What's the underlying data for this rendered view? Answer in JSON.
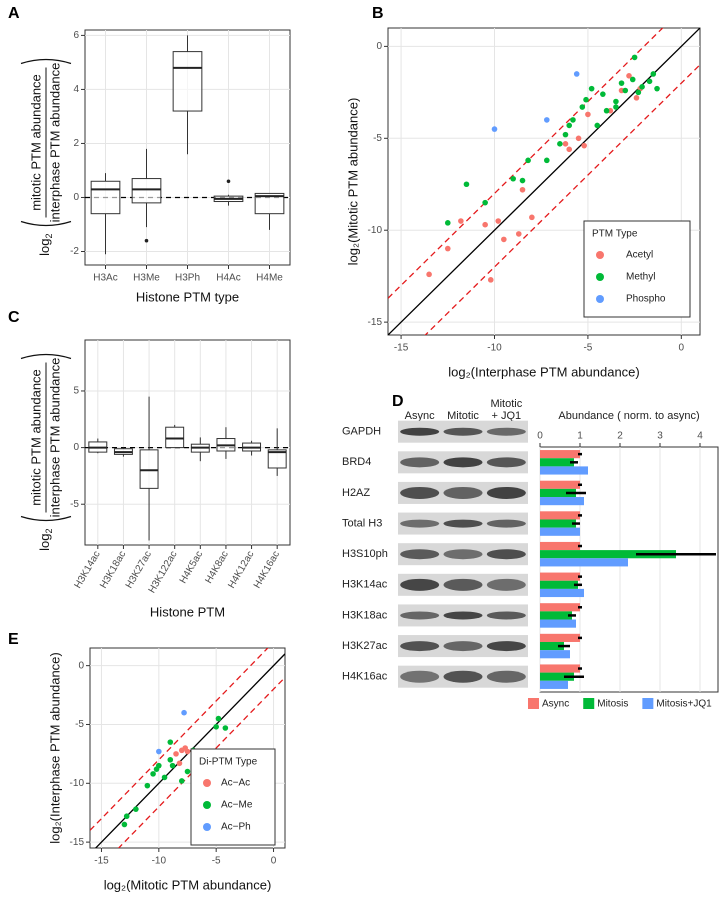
{
  "chart_data": [
    {
      "panel_label": "A",
      "type": "box",
      "ylabel": {
        "prefix": "log",
        "sub": "2",
        "numerator": "mitotic PTM abundance",
        "denominator": "interphase PTM abundance"
      },
      "xlabel": "Histone PTM type",
      "categories": [
        "H3Ac",
        "H3Me",
        "H3Ph",
        "H4Ac",
        "H4Me"
      ],
      "boxes": [
        {
          "low": -2.1,
          "q1": -0.6,
          "median": 0.3,
          "q3": 0.6,
          "high": 0.9,
          "outliers": []
        },
        {
          "low": -1.1,
          "q1": -0.2,
          "median": 0.3,
          "q3": 0.7,
          "high": 1.8,
          "outliers": [
            -1.6
          ]
        },
        {
          "low": 1.6,
          "q1": 3.2,
          "median": 4.8,
          "q3": 5.4,
          "high": 6.0,
          "outliers": []
        },
        {
          "low": -0.3,
          "q1": -0.15,
          "median": -0.05,
          "q3": 0.05,
          "high": 0.1,
          "outliers": [
            0.6
          ]
        },
        {
          "low": -1.2,
          "q1": -0.6,
          "median": 0.05,
          "q3": 0.15,
          "high": 0.15,
          "outliers": []
        }
      ],
      "ylim": [
        -2.5,
        6.2
      ],
      "yticks": [
        -2,
        0,
        2,
        4,
        6
      ],
      "hline": 0,
      "grid": true
    },
    {
      "panel_label": "B",
      "type": "scatter",
      "xlabel": "log₂(Interphase PTM abundance)",
      "ylabel": "log₂(Mitotic PTM abundance)",
      "xlim": [
        -15.7,
        1
      ],
      "ylim": [
        -15.7,
        1
      ],
      "xticks": [
        -15,
        -10,
        -5,
        0
      ],
      "yticks": [
        -15,
        -10,
        -5,
        0
      ],
      "grid": true,
      "ref_lines": [
        {
          "offset": 0,
          "color": "#000000",
          "dash": false
        },
        {
          "offset": 2,
          "color": "#e41a1c",
          "dash": true
        },
        {
          "offset": -2,
          "color": "#e41a1c",
          "dash": true
        }
      ],
      "legend_title": "PTM Type",
      "legend": "bottom-right",
      "series": [
        {
          "name": "Acetyl",
          "color": "#f8766d",
          "x": [
            -13.5,
            -12.5,
            -11.8,
            -10.2,
            -10.5,
            -9.8,
            -9.5,
            -8.7,
            -8,
            -8.5,
            -6.2,
            -6,
            -5.5,
            -5,
            -3.2,
            -2.8,
            -2.4,
            -2.2,
            -3.8,
            -5.2
          ],
          "y": [
            -12.4,
            -11,
            -9.5,
            -12.7,
            -9.7,
            -9.5,
            -10.5,
            -10.2,
            -9.3,
            -7.8,
            -5.3,
            -5.6,
            -5,
            -3.7,
            -2.4,
            -1.6,
            -2.8,
            -2.3,
            -3.5,
            -5.4
          ]
        },
        {
          "name": "Methyl",
          "color": "#00ba38",
          "x": [
            -12.5,
            -11.5,
            -10.5,
            -9,
            -8.5,
            -8.2,
            -7.2,
            -6.5,
            -6.2,
            -6,
            -5.8,
            -5.3,
            -5.1,
            -4.8,
            -4.5,
            -4,
            -3.5,
            -3.2,
            -3,
            -2.6,
            -2.3,
            -2.1,
            -1.7,
            -1.3,
            -1.5,
            -2.5,
            -3.5,
            -4.2
          ],
          "y": [
            -9.6,
            -7.5,
            -8.5,
            -7.2,
            -7.3,
            -6.2,
            -6.2,
            -5.3,
            -4.8,
            -4.3,
            -4,
            -3.3,
            -2.9,
            -2.3,
            -4.3,
            -3.5,
            -3.3,
            -2,
            -2.4,
            -1.8,
            -2.5,
            -2.2,
            -1.9,
            -2.3,
            -1.5,
            -0.6,
            -3,
            -2.6
          ]
        },
        {
          "name": "Phospho",
          "color": "#619cff",
          "x": [
            -10,
            -7.2,
            -5.6
          ],
          "y": [
            -4.5,
            -4,
            -1.5
          ]
        }
      ]
    },
    {
      "panel_label": "C",
      "type": "box",
      "ylabel": {
        "prefix": "log",
        "sub": "2",
        "numerator": "mitotic PTM abundance",
        "denominator": "interphase PTM abundance"
      },
      "xlabel": "Histone PTM",
      "rotated_ticks": true,
      "categories": [
        "H3K14ac",
        "H3K18ac",
        "H3K27ac",
        "H3K122ac",
        "H4K5ac",
        "H4K8ac",
        "H4K12ac",
        "H4K16ac"
      ],
      "boxes": [
        {
          "low": -0.5,
          "q1": -0.4,
          "median": 0,
          "q3": 0.5,
          "high": 0.8,
          "outliers": []
        },
        {
          "low": -0.8,
          "q1": -0.6,
          "median": -0.4,
          "q3": -0.1,
          "high": 0,
          "outliers": []
        },
        {
          "low": -8.2,
          "q1": -3.6,
          "median": -2,
          "q3": -0.2,
          "high": 4.5,
          "outliers": []
        },
        {
          "low": 0,
          "q1": 0,
          "median": 0.8,
          "q3": 1.8,
          "high": 2,
          "outliers": []
        },
        {
          "low": -1.2,
          "q1": -0.4,
          "median": 0,
          "q3": 0.3,
          "high": 0.9,
          "outliers": []
        },
        {
          "low": -1,
          "q1": -0.3,
          "median": 0.2,
          "q3": 0.8,
          "high": 1.8,
          "outliers": []
        },
        {
          "low": -0.7,
          "q1": -0.3,
          "median": 0,
          "q3": 0.4,
          "high": 0.6,
          "outliers": []
        },
        {
          "low": -2.5,
          "q1": -1.8,
          "median": -0.4,
          "q3": -0.2,
          "high": 1.7,
          "outliers": []
        }
      ],
      "ylim": [
        -8.6,
        9.5
      ],
      "yticks": [
        -5,
        0,
        5
      ],
      "hline": 0,
      "grid": true
    },
    {
      "panel_label": "D",
      "type": "hbar",
      "title": "Abundance ( norm. to async)",
      "blot_columns": [
        [
          "Async"
        ],
        [
          "Mitotic"
        ],
        [
          "Mitotic",
          "+ JQ1"
        ]
      ],
      "blot_rows": [
        "GAPDH",
        "BRD4",
        "H2AZ",
        "Total H3",
        "H3S10ph",
        "H3K14ac",
        "H3K18ac",
        "H3K27ac",
        "H4K16ac"
      ],
      "categories": [
        "BRD4",
        "H2AZ",
        "Total H3",
        "H3S10ph",
        "H3K14ac",
        "H3K18ac",
        "H3K27ac",
        "H4K16ac"
      ],
      "xlim": [
        0,
        4.45
      ],
      "xticks": [
        0,
        1,
        2,
        3,
        4
      ],
      "grid": true,
      "legend": "bottom",
      "series": [
        {
          "name": "Async",
          "color": "#f8766d",
          "values": [
            1,
            1,
            1,
            1,
            1,
            1,
            1,
            1
          ],
          "errors": [
            0.05,
            0.05,
            0.05,
            0.05,
            0.05,
            0.05,
            0.05,
            0.05
          ]
        },
        {
          "name": "Mitosis",
          "color": "#00ba38",
          "values": [
            0.85,
            0.9,
            0.9,
            3.4,
            0.95,
            0.8,
            0.6,
            0.85
          ],
          "errors": [
            0.1,
            0.25,
            0.1,
            1.0,
            0.1,
            0.1,
            0.15,
            0.25
          ]
        },
        {
          "name": "Mitosis+JQ1",
          "color": "#619cff",
          "values": [
            1.2,
            1.1,
            1.0,
            2.2,
            1.1,
            0.9,
            0.75,
            0.7
          ]
        }
      ]
    },
    {
      "panel_label": "E",
      "type": "scatter",
      "xlabel": "log₂(Mitotic PTM abundance)",
      "ylabel": "log₂(Interphase PTM abundance)",
      "xlim": [
        -16,
        1
      ],
      "ylim": [
        -15.5,
        1.5
      ],
      "xticks": [
        -15,
        -10,
        -5,
        0
      ],
      "yticks": [
        -15,
        -10,
        -5,
        0
      ],
      "grid": true,
      "ref_lines": [
        {
          "offset": 0,
          "color": "#000000",
          "dash": false
        },
        {
          "offset": 2,
          "color": "#e41a1c",
          "dash": true
        },
        {
          "offset": -2,
          "color": "#e41a1c",
          "dash": true
        }
      ],
      "legend_title": "Di-PTM Type",
      "legend": "bottom-right",
      "series": [
        {
          "name": "Ac−Ac",
          "color": "#f8766d",
          "x": [
            -8.5,
            -8,
            -7.7,
            -7.5,
            -8.2
          ],
          "y": [
            -7.5,
            -7.2,
            -7,
            -7.3,
            -8.3
          ]
        },
        {
          "name": "Ac−Me",
          "color": "#00ba38",
          "x": [
            -13,
            -12.8,
            -12,
            -11,
            -10.5,
            -10.2,
            -10,
            -9.5,
            -9,
            -8.8,
            -8,
            -7.5,
            -7,
            -6.8,
            -6,
            -5,
            -4.8,
            -4.2,
            -9
          ],
          "y": [
            -13.5,
            -12.8,
            -12.2,
            -10.2,
            -9.2,
            -8.8,
            -8.5,
            -9.5,
            -8,
            -8.5,
            -9.8,
            -9,
            -7.2,
            -8.5,
            -7.5,
            -5.2,
            -4.5,
            -5.3,
            -6.5
          ]
        },
        {
          "name": "Ac−Ph",
          "color": "#619cff",
          "x": [
            -10,
            -7.8
          ],
          "y": [
            -7.3,
            -4
          ]
        }
      ]
    }
  ]
}
